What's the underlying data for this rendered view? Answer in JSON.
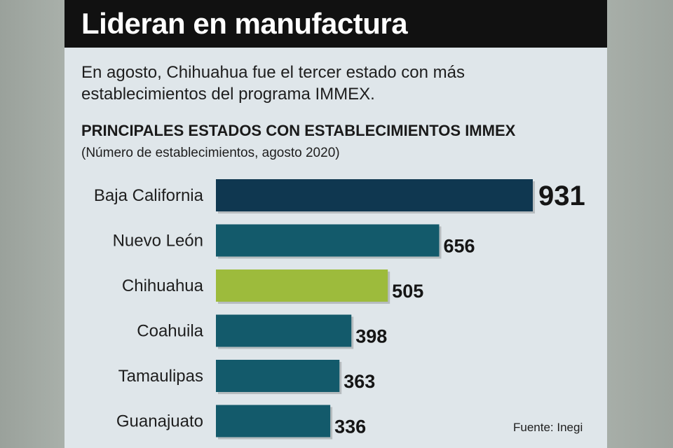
{
  "header": {
    "title": "Lideran en manufactura",
    "subtitle": "En agosto, Chihuahua fue el tercer estado con más establecimientos del programa IMMEX."
  },
  "source": "Fuente: Inegi",
  "colors": {
    "title_bar": "#111111",
    "panel_background": "#dfe6ea",
    "top_bar": "#0f3750",
    "bar": "#135a6b",
    "highlight_bar": "#9dbb3c",
    "text": "#1e1e1e"
  },
  "chart_data": {
    "type": "bar",
    "orientation": "horizontal",
    "title": "PRINCIPALES ESTADOS CON ESTABLECIMIENTOS IMMEX",
    "subtitle": "(Número de establecimientos, agosto 2020)",
    "categories": [
      "Baja California",
      "Nuevo León",
      "Chihuahua",
      "Coahuila",
      "Tamaulipas",
      "Guanajuato"
    ],
    "values": [
      931,
      656,
      505,
      398,
      363,
      336
    ],
    "highlight": "Chihuahua",
    "value_labels": [
      "931",
      "656",
      "505",
      "398",
      "363",
      "336"
    ],
    "xlim": [
      0,
      931
    ],
    "grid": false,
    "legend": "none"
  }
}
